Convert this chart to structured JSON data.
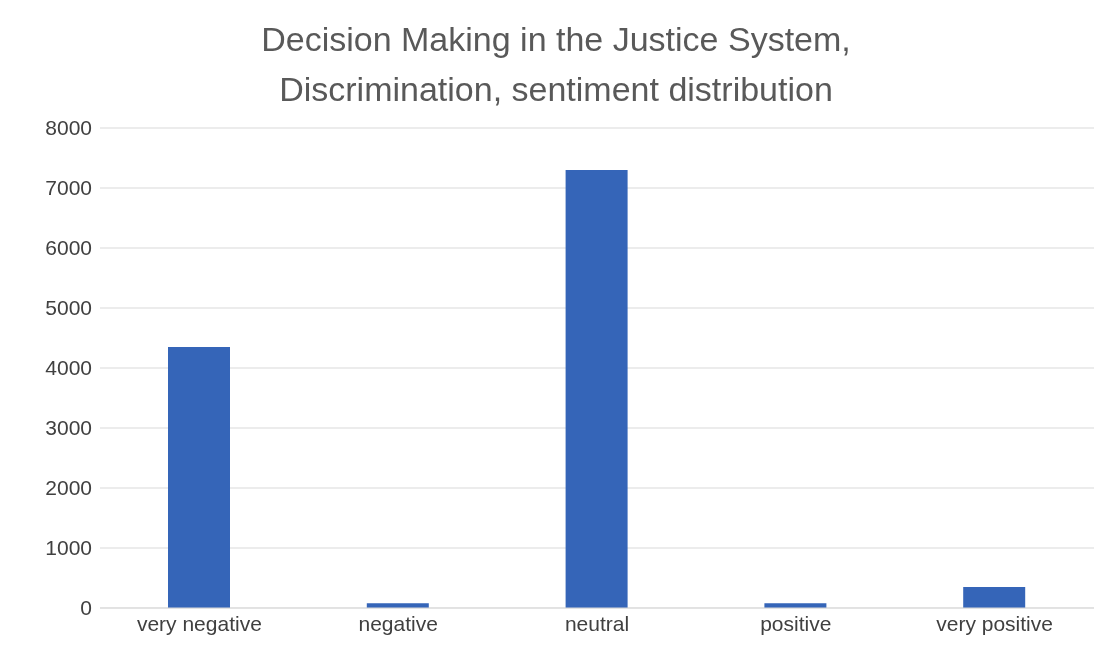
{
  "chart_data": {
    "type": "bar",
    "title": "Decision Making in the Justice System, Discrimination, sentiment distribution",
    "categories": [
      "very negative",
      "negative",
      "neutral",
      "positive",
      "very positive"
    ],
    "values": [
      4350,
      80,
      7300,
      80,
      350
    ],
    "color": "#3565b8",
    "ylim": [
      0,
      8000
    ],
    "yticks": [
      0,
      1000,
      2000,
      3000,
      4000,
      5000,
      6000,
      7000,
      8000
    ],
    "grid": "y"
  }
}
